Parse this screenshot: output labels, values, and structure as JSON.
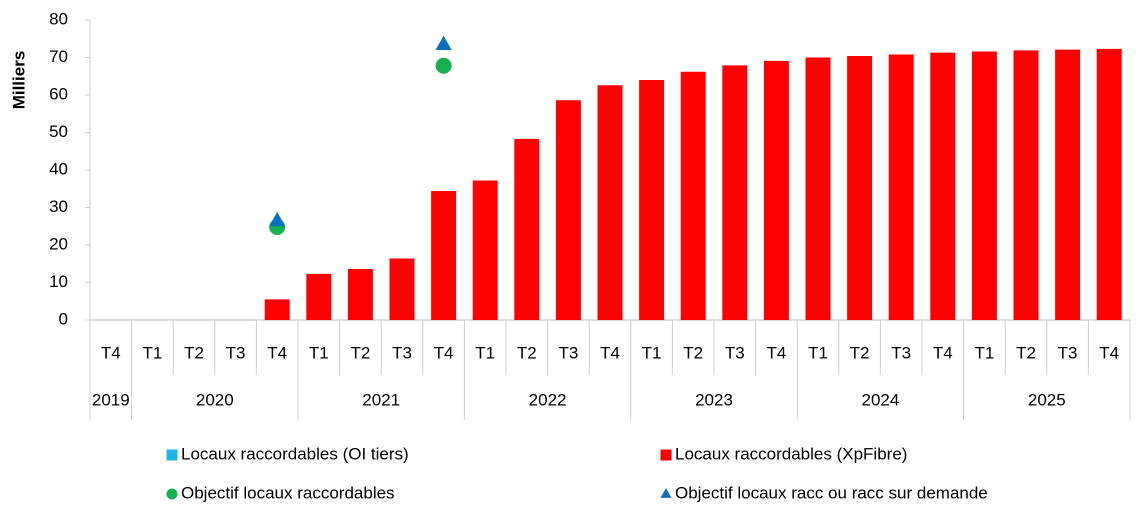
{
  "chart_data": {
    "type": "bar",
    "y_label": "Milliers",
    "categories": [
      "T4",
      "T1",
      "T2",
      "T3",
      "T4",
      "T1",
      "T2",
      "T3",
      "T4",
      "T1",
      "T2",
      "T3",
      "T4",
      "T1",
      "T2",
      "T3",
      "T4",
      "T1",
      "T2",
      "T3",
      "T4",
      "T1",
      "T2",
      "T3",
      "T4"
    ],
    "category_years": [
      "2019",
      "2020",
      "2020",
      "2020",
      "2020",
      "2021",
      "2021",
      "2021",
      "2021",
      "2022",
      "2022",
      "2022",
      "2022",
      "2023",
      "2023",
      "2023",
      "2023",
      "2024",
      "2024",
      "2024",
      "2024",
      "2025",
      "2025",
      "2025",
      "2025"
    ],
    "series": [
      {
        "name": "Locaux raccordables (OI tiers)",
        "color": "#1fb4e8",
        "marker": "square",
        "values": [
          null,
          null,
          null,
          null,
          null,
          null,
          null,
          null,
          null,
          null,
          null,
          null,
          null,
          null,
          null,
          null,
          null,
          null,
          null,
          null,
          null,
          null,
          null,
          null,
          null
        ]
      },
      {
        "name": "Locaux raccordables (XpFibre)",
        "color": "#ff0000",
        "marker": "square",
        "values": [
          null,
          null,
          null,
          null,
          5.5,
          12.3,
          13.6,
          16.4,
          34.4,
          37.2,
          48.3,
          58.6,
          62.6,
          64.0,
          66.2,
          67.9,
          69.1,
          70.0,
          70.4,
          70.8,
          71.3,
          71.6,
          71.9,
          72.1,
          72.3
        ]
      },
      {
        "name": "Objectif locaux raccordables",
        "color": "#17b050",
        "marker": "circle",
        "values": [
          null,
          null,
          null,
          null,
          24.8,
          null,
          null,
          null,
          67.8,
          null,
          null,
          null,
          null,
          null,
          null,
          null,
          null,
          null,
          null,
          null,
          null,
          null,
          null,
          null,
          null
        ]
      },
      {
        "name": "Objectif locaux racc ou racc sur demande",
        "color": "#0e6fc1",
        "marker": "triangle",
        "values": [
          null,
          null,
          null,
          null,
          26.5,
          null,
          null,
          null,
          73.5,
          null,
          null,
          null,
          null,
          null,
          null,
          null,
          null,
          null,
          null,
          null,
          null,
          null,
          null,
          null,
          null
        ]
      }
    ],
    "ylim": [
      0,
      80
    ],
    "yticks": [
      0,
      10,
      20,
      30,
      40,
      50,
      60,
      70,
      80
    ],
    "grid": false
  }
}
